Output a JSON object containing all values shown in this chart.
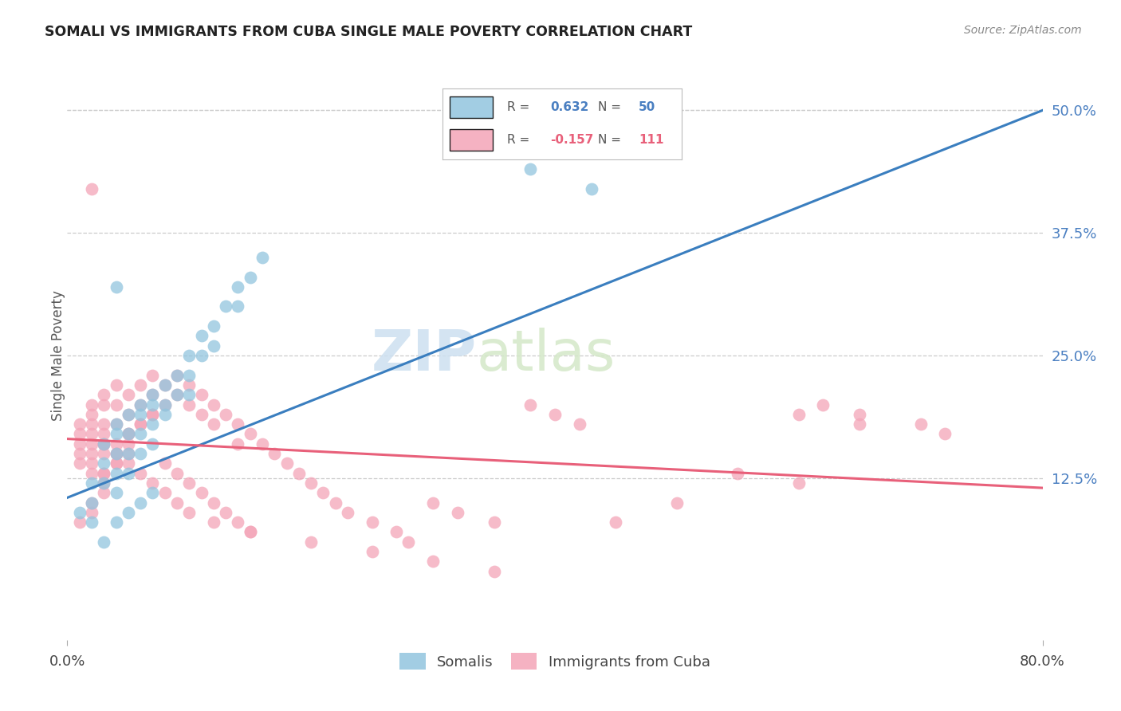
{
  "title": "SOMALI VS IMMIGRANTS FROM CUBA SINGLE MALE POVERTY CORRELATION CHART",
  "source": "Source: ZipAtlas.com",
  "ylabel": "Single Male Poverty",
  "xlim": [
    0.0,
    0.8
  ],
  "ylim": [
    -0.04,
    0.54
  ],
  "right_yticks": [
    0.0,
    0.125,
    0.25,
    0.375,
    0.5
  ],
  "right_yticklabels": [
    "",
    "12.5%",
    "25.0%",
    "37.5%",
    "50.0%"
  ],
  "somali_color": "#92c5de",
  "cuba_color": "#f4a5b8",
  "trendline_somali_color": "#3a7ebf",
  "trendline_cuba_color": "#e8607a",
  "watermark_color": "#cde0f0",
  "somali_trend_x0": 0.0,
  "somali_trend_y0": 0.105,
  "somali_trend_x1": 0.8,
  "somali_trend_y1": 0.5,
  "cuba_trend_x0": 0.0,
  "cuba_trend_y0": 0.165,
  "cuba_trend_x1": 0.8,
  "cuba_trend_y1": 0.115,
  "somali_x": [
    0.01,
    0.02,
    0.02,
    0.03,
    0.03,
    0.03,
    0.04,
    0.04,
    0.04,
    0.04,
    0.04,
    0.05,
    0.05,
    0.05,
    0.05,
    0.06,
    0.06,
    0.06,
    0.06,
    0.07,
    0.07,
    0.07,
    0.07,
    0.08,
    0.08,
    0.08,
    0.09,
    0.09,
    0.1,
    0.1,
    0.1,
    0.11,
    0.11,
    0.12,
    0.12,
    0.13,
    0.14,
    0.14,
    0.15,
    0.16,
    0.02,
    0.03,
    0.04,
    0.05,
    0.06,
    0.07,
    0.38,
    0.42,
    0.43,
    0.04
  ],
  "somali_y": [
    0.09,
    0.12,
    0.1,
    0.16,
    0.14,
    0.12,
    0.18,
    0.17,
    0.15,
    0.13,
    0.11,
    0.19,
    0.17,
    0.15,
    0.13,
    0.2,
    0.19,
    0.17,
    0.15,
    0.21,
    0.2,
    0.18,
    0.16,
    0.22,
    0.2,
    0.19,
    0.23,
    0.21,
    0.25,
    0.23,
    0.21,
    0.27,
    0.25,
    0.28,
    0.26,
    0.3,
    0.32,
    0.3,
    0.33,
    0.35,
    0.08,
    0.06,
    0.08,
    0.09,
    0.1,
    0.11,
    0.44,
    0.46,
    0.42,
    0.32
  ],
  "cuba_x": [
    0.01,
    0.01,
    0.01,
    0.01,
    0.01,
    0.02,
    0.02,
    0.02,
    0.02,
    0.02,
    0.02,
    0.02,
    0.02,
    0.03,
    0.03,
    0.03,
    0.03,
    0.03,
    0.03,
    0.03,
    0.04,
    0.04,
    0.04,
    0.04,
    0.04,
    0.05,
    0.05,
    0.05,
    0.05,
    0.06,
    0.06,
    0.06,
    0.07,
    0.07,
    0.07,
    0.08,
    0.08,
    0.09,
    0.09,
    0.1,
    0.1,
    0.11,
    0.11,
    0.12,
    0.12,
    0.13,
    0.14,
    0.14,
    0.15,
    0.16,
    0.17,
    0.18,
    0.19,
    0.2,
    0.21,
    0.22,
    0.23,
    0.25,
    0.27,
    0.28,
    0.3,
    0.32,
    0.35,
    0.38,
    0.4,
    0.42,
    0.45,
    0.5,
    0.55,
    0.6,
    0.62,
    0.65,
    0.7,
    0.72,
    0.01,
    0.02,
    0.02,
    0.03,
    0.03,
    0.03,
    0.04,
    0.04,
    0.05,
    0.05,
    0.06,
    0.07,
    0.08,
    0.09,
    0.1,
    0.11,
    0.12,
    0.13,
    0.14,
    0.15,
    0.02,
    0.03,
    0.04,
    0.05,
    0.06,
    0.07,
    0.08,
    0.09,
    0.1,
    0.12,
    0.15,
    0.2,
    0.25,
    0.3,
    0.35,
    0.6,
    0.65
  ],
  "cuba_y": [
    0.18,
    0.17,
    0.16,
    0.15,
    0.14,
    0.2,
    0.19,
    0.18,
    0.17,
    0.16,
    0.15,
    0.14,
    0.13,
    0.21,
    0.2,
    0.18,
    0.17,
    0.16,
    0.15,
    0.13,
    0.22,
    0.2,
    0.18,
    0.16,
    0.14,
    0.21,
    0.19,
    0.17,
    0.15,
    0.22,
    0.2,
    0.18,
    0.23,
    0.21,
    0.19,
    0.22,
    0.2,
    0.23,
    0.21,
    0.22,
    0.2,
    0.21,
    0.19,
    0.2,
    0.18,
    0.19,
    0.18,
    0.16,
    0.17,
    0.16,
    0.15,
    0.14,
    0.13,
    0.12,
    0.11,
    0.1,
    0.09,
    0.08,
    0.07,
    0.06,
    0.1,
    0.09,
    0.08,
    0.2,
    0.19,
    0.18,
    0.08,
    0.1,
    0.13,
    0.12,
    0.2,
    0.19,
    0.18,
    0.17,
    0.08,
    0.09,
    0.1,
    0.11,
    0.12,
    0.13,
    0.14,
    0.15,
    0.16,
    0.17,
    0.18,
    0.19,
    0.14,
    0.13,
    0.12,
    0.11,
    0.1,
    0.09,
    0.08,
    0.07,
    0.42,
    0.16,
    0.15,
    0.14,
    0.13,
    0.12,
    0.11,
    0.1,
    0.09,
    0.08,
    0.07,
    0.06,
    0.05,
    0.04,
    0.03,
    0.19,
    0.18
  ]
}
